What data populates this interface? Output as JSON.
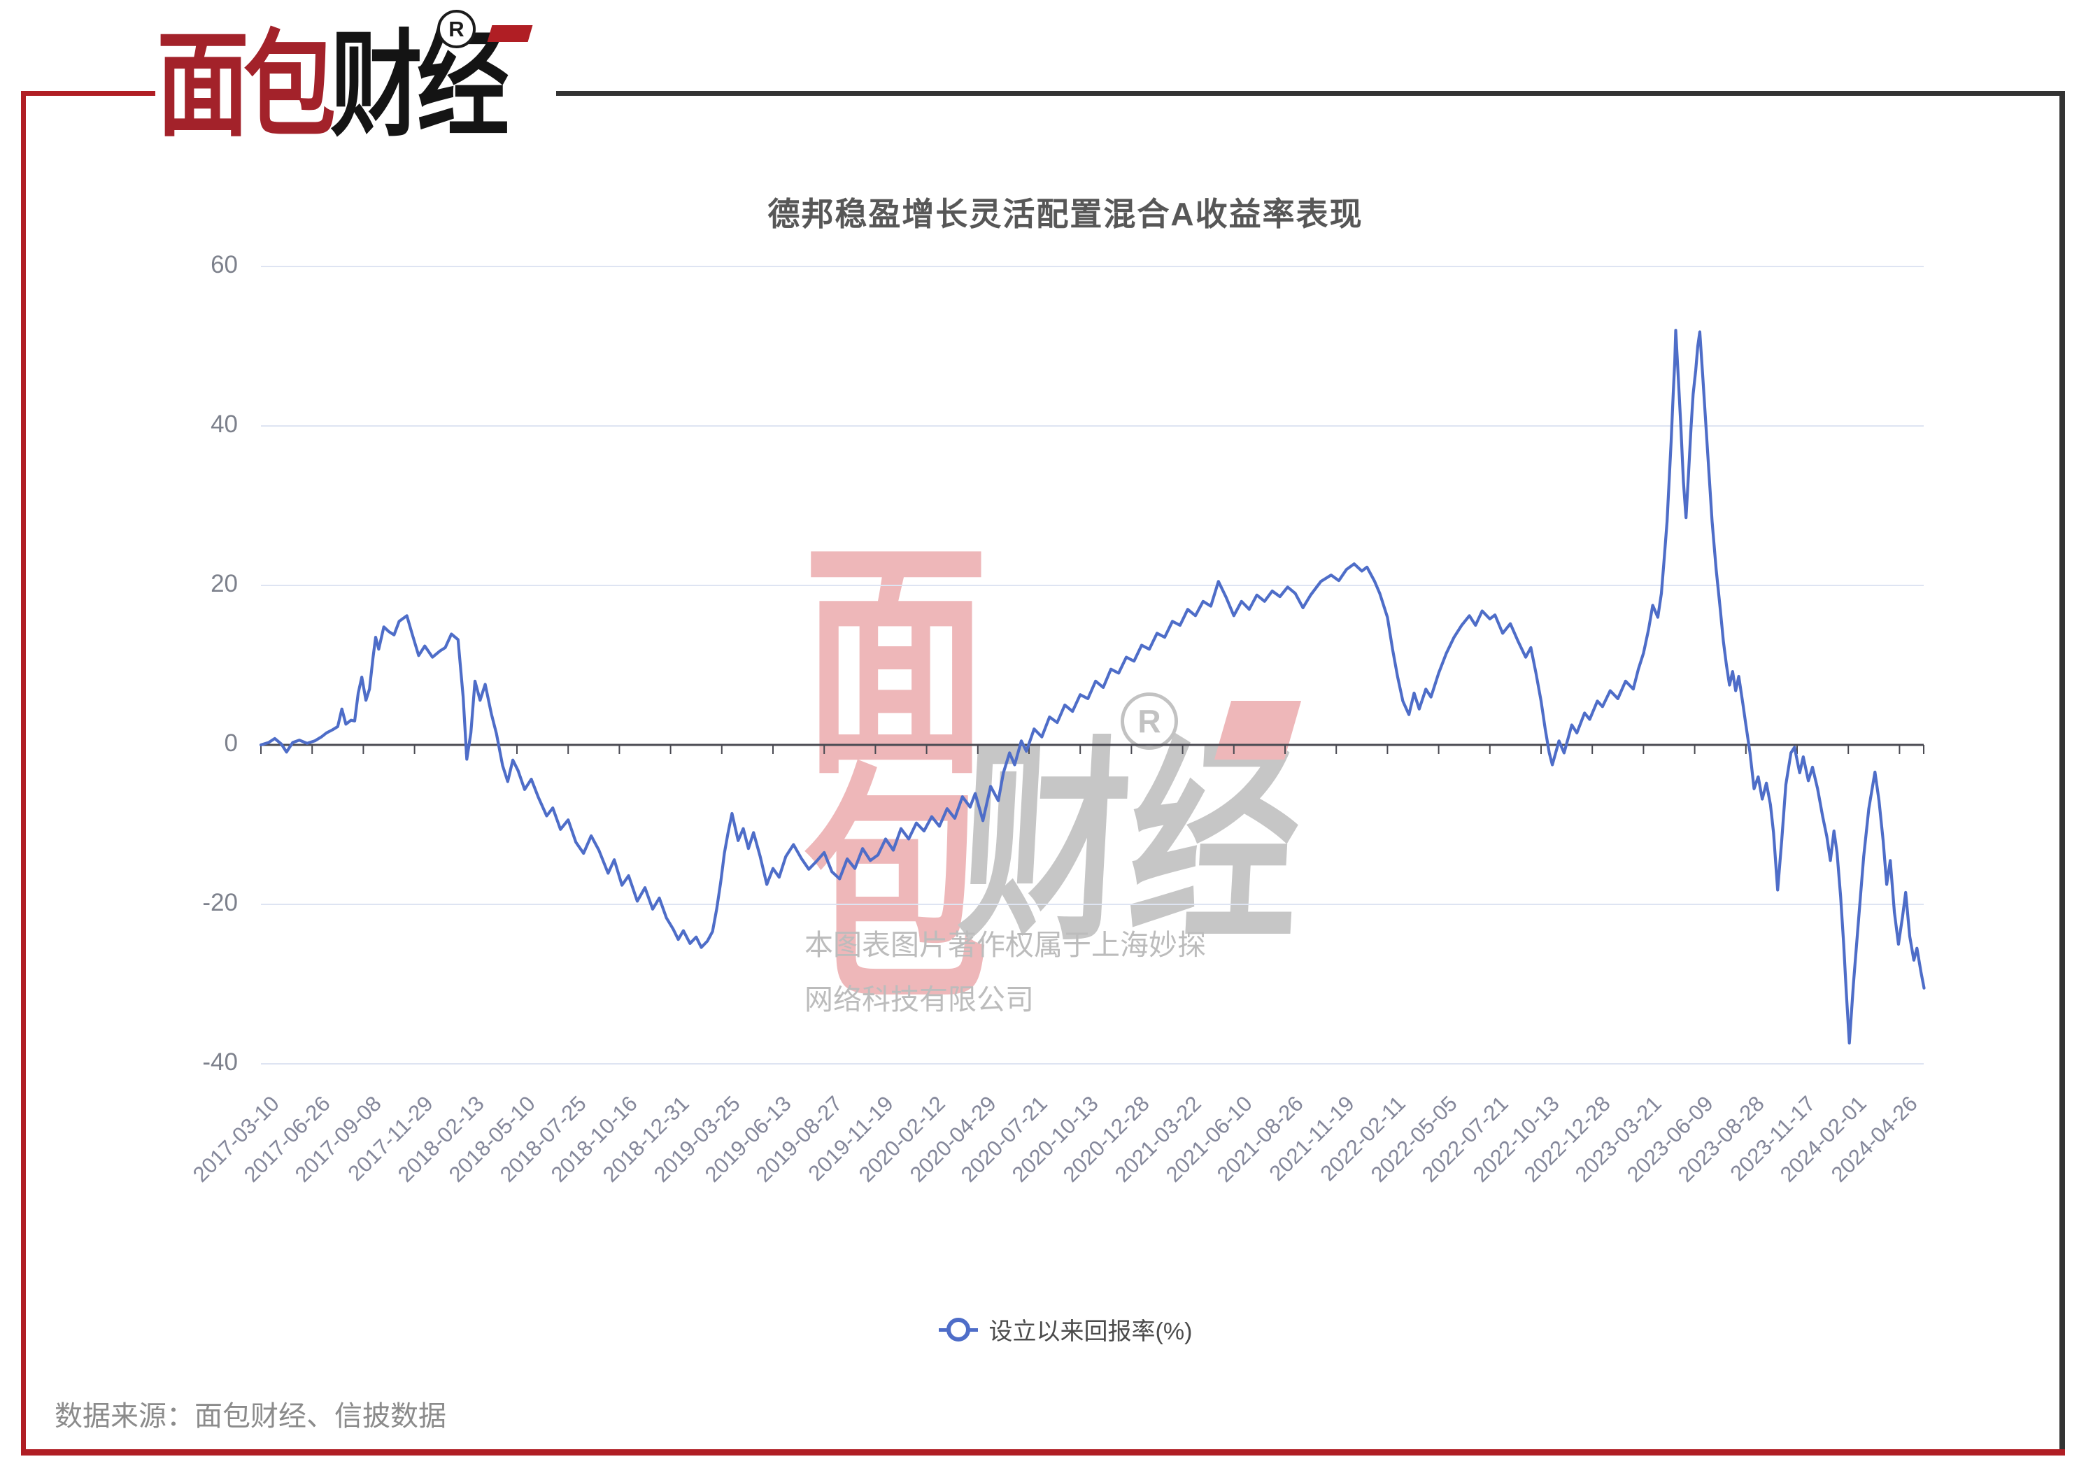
{
  "logo": {
    "brand_red": "面包",
    "brand_black": "财经",
    "registered": "R"
  },
  "header": {
    "title": "德邦稳盈增长灵活配置混合A收益率表现"
  },
  "legend": {
    "label": "设立以来回报率(%)"
  },
  "footer": {
    "source": "数据来源：面包财经、信披数据"
  },
  "watermark": {
    "char_top": "面",
    "char_bottom": "包",
    "right_text": "财经",
    "registered": "R",
    "copyright_line1": "本图表图片著作权属于上海妙探",
    "copyright_line2": "网络科技有限公司"
  },
  "colors": {
    "line": "#4e6dc8",
    "grid": "#dee4f2",
    "axis": "#4a4a52",
    "frame_red": "#b01e24",
    "frame_dark": "#333333",
    "logo_red": "#a3222a",
    "logo_black": "#141414",
    "watermark_pink": "#eeb7b9",
    "watermark_gray": "#c6c6c6",
    "copyright_gray": "#bcbcbc"
  },
  "chart_data": {
    "type": "line",
    "title": "德邦稳盈增长灵活配置混合A收益率表现",
    "xlabel": "",
    "ylabel": "",
    "ylim": [
      -40,
      60
    ],
    "grid": true,
    "legend_position": "bottom",
    "x_label_rotation": -45,
    "y_ticks": [
      60,
      40,
      20,
      0,
      -20,
      -40
    ],
    "x_labels": [
      "2017-03-10",
      "2017-06-26",
      "2017-09-08",
      "2017-11-29",
      "2018-02-13",
      "2018-05-10",
      "2018-07-25",
      "2018-10-16",
      "2018-12-31",
      "2019-03-25",
      "2019-06-13",
      "2019-08-27",
      "2019-11-19",
      "2020-02-12",
      "2020-04-29",
      "2020-07-21",
      "2020-10-13",
      "2020-12-28",
      "2021-03-22",
      "2021-06-10",
      "2021-08-26",
      "2021-11-19",
      "2022-02-11",
      "2022-05-05",
      "2022-07-21",
      "2022-10-13",
      "2022-12-28",
      "2023-03-21",
      "2023-06-09",
      "2023-08-28",
      "2023-11-17",
      "2024-02-01",
      "2024-04-26"
    ],
    "series": [
      {
        "name": "设立以来回报率(%)",
        "color": "#4e6dc8",
        "points": [
          [
            0,
            0
          ],
          [
            0.15,
            0.3
          ],
          [
            0.27,
            0.8
          ],
          [
            0.4,
            0.1
          ],
          [
            0.5,
            -0.9
          ],
          [
            0.62,
            0.3
          ],
          [
            0.75,
            0.6
          ],
          [
            0.9,
            0.2
          ],
          [
            1.05,
            0.5
          ],
          [
            1.18,
            1.0
          ],
          [
            1.28,
            1.5
          ],
          [
            1.4,
            1.9
          ],
          [
            1.5,
            2.3
          ],
          [
            1.58,
            4.5
          ],
          [
            1.66,
            2.6
          ],
          [
            1.76,
            3.1
          ],
          [
            1.83,
            3.0
          ],
          [
            1.9,
            6.5
          ],
          [
            1.97,
            8.5
          ],
          [
            2.05,
            5.6
          ],
          [
            2.12,
            7.0
          ],
          [
            2.19,
            11.0
          ],
          [
            2.24,
            13.5
          ],
          [
            2.3,
            12.0
          ],
          [
            2.4,
            14.8
          ],
          [
            2.5,
            14.2
          ],
          [
            2.6,
            13.8
          ],
          [
            2.7,
            15.5
          ],
          [
            2.85,
            16.2
          ],
          [
            2.95,
            14.0
          ],
          [
            3.08,
            11.2
          ],
          [
            3.2,
            12.4
          ],
          [
            3.35,
            11.0
          ],
          [
            3.5,
            11.8
          ],
          [
            3.6,
            12.2
          ],
          [
            3.72,
            13.9
          ],
          [
            3.85,
            13.2
          ],
          [
            3.95,
            6.0
          ],
          [
            4.02,
            -1.8
          ],
          [
            4.1,
            1.5
          ],
          [
            4.18,
            8.0
          ],
          [
            4.28,
            5.6
          ],
          [
            4.38,
            7.6
          ],
          [
            4.5,
            3.9
          ],
          [
            4.6,
            1.4
          ],
          [
            4.72,
            -2.6
          ],
          [
            4.82,
            -4.6
          ],
          [
            4.92,
            -1.9
          ],
          [
            5.02,
            -3.2
          ],
          [
            5.15,
            -5.6
          ],
          [
            5.28,
            -4.3
          ],
          [
            5.42,
            -6.6
          ],
          [
            5.58,
            -8.9
          ],
          [
            5.7,
            -7.9
          ],
          [
            5.85,
            -10.6
          ],
          [
            6.0,
            -9.4
          ],
          [
            6.15,
            -12.2
          ],
          [
            6.3,
            -13.6
          ],
          [
            6.45,
            -11.4
          ],
          [
            6.6,
            -13.2
          ],
          [
            6.78,
            -16.1
          ],
          [
            6.9,
            -14.4
          ],
          [
            7.05,
            -17.6
          ],
          [
            7.18,
            -16.4
          ],
          [
            7.35,
            -19.6
          ],
          [
            7.5,
            -17.9
          ],
          [
            7.65,
            -20.6
          ],
          [
            7.78,
            -19.2
          ],
          [
            7.92,
            -21.7
          ],
          [
            8.05,
            -23.1
          ],
          [
            8.15,
            -24.4
          ],
          [
            8.25,
            -23.3
          ],
          [
            8.38,
            -24.9
          ],
          [
            8.5,
            -24.1
          ],
          [
            8.6,
            -25.4
          ],
          [
            8.72,
            -24.6
          ],
          [
            8.82,
            -23.4
          ],
          [
            8.9,
            -20.6
          ],
          [
            8.98,
            -17.2
          ],
          [
            9.05,
            -13.6
          ],
          [
            9.12,
            -11.1
          ],
          [
            9.2,
            -8.6
          ],
          [
            9.32,
            -12.0
          ],
          [
            9.42,
            -10.5
          ],
          [
            9.52,
            -13.0
          ],
          [
            9.62,
            -11.0
          ],
          [
            9.75,
            -14.0
          ],
          [
            9.88,
            -17.5
          ],
          [
            10.0,
            -15.5
          ],
          [
            10.12,
            -16.6
          ],
          [
            10.25,
            -14.0
          ],
          [
            10.4,
            -12.5
          ],
          [
            10.55,
            -14.2
          ],
          [
            10.7,
            -15.6
          ],
          [
            10.85,
            -14.6
          ],
          [
            11.0,
            -13.5
          ],
          [
            11.15,
            -15.9
          ],
          [
            11.3,
            -16.8
          ],
          [
            11.45,
            -14.3
          ],
          [
            11.6,
            -15.5
          ],
          [
            11.75,
            -13.0
          ],
          [
            11.9,
            -14.5
          ],
          [
            12.05,
            -13.8
          ],
          [
            12.2,
            -11.8
          ],
          [
            12.35,
            -13.2
          ],
          [
            12.5,
            -10.5
          ],
          [
            12.65,
            -11.8
          ],
          [
            12.8,
            -9.8
          ],
          [
            12.95,
            -10.8
          ],
          [
            13.1,
            -9.0
          ],
          [
            13.25,
            -10.2
          ],
          [
            13.4,
            -8.0
          ],
          [
            13.55,
            -9.2
          ],
          [
            13.7,
            -6.5
          ],
          [
            13.85,
            -7.8
          ],
          [
            13.95,
            -6.1
          ],
          [
            14.1,
            -9.5
          ],
          [
            14.25,
            -5.2
          ],
          [
            14.4,
            -7.0
          ],
          [
            14.5,
            -3.5
          ],
          [
            14.62,
            -1.0
          ],
          [
            14.72,
            -2.5
          ],
          [
            14.85,
            0.5
          ],
          [
            14.95,
            -0.8
          ],
          [
            15.1,
            2.0
          ],
          [
            15.25,
            1.0
          ],
          [
            15.4,
            3.5
          ],
          [
            15.55,
            2.8
          ],
          [
            15.7,
            5.0
          ],
          [
            15.85,
            4.2
          ],
          [
            16.0,
            6.3
          ],
          [
            16.15,
            5.8
          ],
          [
            16.3,
            8.0
          ],
          [
            16.45,
            7.2
          ],
          [
            16.6,
            9.5
          ],
          [
            16.75,
            9.0
          ],
          [
            16.9,
            11.0
          ],
          [
            17.05,
            10.5
          ],
          [
            17.2,
            12.5
          ],
          [
            17.35,
            12.0
          ],
          [
            17.5,
            14.0
          ],
          [
            17.65,
            13.5
          ],
          [
            17.8,
            15.5
          ],
          [
            17.95,
            15.0
          ],
          [
            18.1,
            17.0
          ],
          [
            18.25,
            16.2
          ],
          [
            18.4,
            18.0
          ],
          [
            18.55,
            17.4
          ],
          [
            18.7,
            20.5
          ],
          [
            18.85,
            18.5
          ],
          [
            19.0,
            16.2
          ],
          [
            19.15,
            18.0
          ],
          [
            19.3,
            17.0
          ],
          [
            19.45,
            18.8
          ],
          [
            19.6,
            18.0
          ],
          [
            19.75,
            19.3
          ],
          [
            19.9,
            18.6
          ],
          [
            20.05,
            19.8
          ],
          [
            20.2,
            19.0
          ],
          [
            20.35,
            17.2
          ],
          [
            20.5,
            18.8
          ],
          [
            20.7,
            20.5
          ],
          [
            20.9,
            21.3
          ],
          [
            21.05,
            20.6
          ],
          [
            21.2,
            22.0
          ],
          [
            21.35,
            22.7
          ],
          [
            21.5,
            21.8
          ],
          [
            21.6,
            22.3
          ],
          [
            21.75,
            20.5
          ],
          [
            21.85,
            19.0
          ],
          [
            22.0,
            16.0
          ],
          [
            22.1,
            12.0
          ],
          [
            22.2,
            8.5
          ],
          [
            22.3,
            5.5
          ],
          [
            22.42,
            3.8
          ],
          [
            22.52,
            6.5
          ],
          [
            22.62,
            4.5
          ],
          [
            22.75,
            7.0
          ],
          [
            22.85,
            6.0
          ],
          [
            23.0,
            9.0
          ],
          [
            23.15,
            11.5
          ],
          [
            23.3,
            13.5
          ],
          [
            23.45,
            15.0
          ],
          [
            23.6,
            16.2
          ],
          [
            23.72,
            15.0
          ],
          [
            23.85,
            16.8
          ],
          [
            24.0,
            15.8
          ],
          [
            24.1,
            16.3
          ],
          [
            24.25,
            14.0
          ],
          [
            24.4,
            15.2
          ],
          [
            24.55,
            13.0
          ],
          [
            24.7,
            11.0
          ],
          [
            24.8,
            12.2
          ],
          [
            24.9,
            9.0
          ],
          [
            25.0,
            5.5
          ],
          [
            25.08,
            2.0
          ],
          [
            25.16,
            -1.0
          ],
          [
            25.22,
            -2.5
          ],
          [
            25.35,
            0.5
          ],
          [
            25.45,
            -1.0
          ],
          [
            25.6,
            2.5
          ],
          [
            25.7,
            1.5
          ],
          [
            25.85,
            4.0
          ],
          [
            25.95,
            3.2
          ],
          [
            26.1,
            5.5
          ],
          [
            26.2,
            4.8
          ],
          [
            26.35,
            6.8
          ],
          [
            26.5,
            5.8
          ],
          [
            26.65,
            8.0
          ],
          [
            26.8,
            7.0
          ],
          [
            26.9,
            9.5
          ],
          [
            27.0,
            11.5
          ],
          [
            27.1,
            14.5
          ],
          [
            27.18,
            17.5
          ],
          [
            27.28,
            16.0
          ],
          [
            27.35,
            19.0
          ],
          [
            27.4,
            23.0
          ],
          [
            27.46,
            28.0
          ],
          [
            27.5,
            33.0
          ],
          [
            27.54,
            38.0
          ],
          [
            27.58,
            44.0
          ],
          [
            27.61,
            48.0
          ],
          [
            27.63,
            52.0
          ],
          [
            27.68,
            46.0
          ],
          [
            27.73,
            40.0
          ],
          [
            27.78,
            33.0
          ],
          [
            27.83,
            28.5
          ],
          [
            27.88,
            34.0
          ],
          [
            27.93,
            40.0
          ],
          [
            27.97,
            44.0
          ],
          [
            28.02,
            47.0
          ],
          [
            28.06,
            50.0
          ],
          [
            28.1,
            51.8
          ],
          [
            28.16,
            46.0
          ],
          [
            28.22,
            40.0
          ],
          [
            28.28,
            34.0
          ],
          [
            28.34,
            28.0
          ],
          [
            28.42,
            22.0
          ],
          [
            28.5,
            17.0
          ],
          [
            28.56,
            13.0
          ],
          [
            28.62,
            10.0
          ],
          [
            28.68,
            7.5
          ],
          [
            28.74,
            9.2
          ],
          [
            28.8,
            6.8
          ],
          [
            28.86,
            8.6
          ],
          [
            28.94,
            5.2
          ],
          [
            29.0,
            2.5
          ],
          [
            29.08,
            -1.0
          ],
          [
            29.16,
            -5.5
          ],
          [
            29.24,
            -4.0
          ],
          [
            29.32,
            -6.8
          ],
          [
            29.4,
            -4.8
          ],
          [
            29.48,
            -7.5
          ],
          [
            29.54,
            -11.0
          ],
          [
            29.62,
            -18.2
          ],
          [
            29.7,
            -12.0
          ],
          [
            29.78,
            -5.0
          ],
          [
            29.88,
            -1.0
          ],
          [
            29.95,
            -0.3
          ],
          [
            30.05,
            -3.5
          ],
          [
            30.12,
            -1.5
          ],
          [
            30.22,
            -4.5
          ],
          [
            30.3,
            -2.8
          ],
          [
            30.4,
            -5.5
          ],
          [
            30.5,
            -9.0
          ],
          [
            30.58,
            -11.5
          ],
          [
            30.65,
            -14.5
          ],
          [
            30.72,
            -10.8
          ],
          [
            30.78,
            -13.5
          ],
          [
            30.85,
            -19.0
          ],
          [
            30.91,
            -25.0
          ],
          [
            30.96,
            -31.0
          ],
          [
            31.02,
            -37.4
          ],
          [
            31.1,
            -30.0
          ],
          [
            31.2,
            -22.0
          ],
          [
            31.3,
            -14.0
          ],
          [
            31.4,
            -8.0
          ],
          [
            31.52,
            -3.4
          ],
          [
            31.6,
            -7.0
          ],
          [
            31.68,
            -12.0
          ],
          [
            31.75,
            -17.5
          ],
          [
            31.82,
            -14.5
          ],
          [
            31.9,
            -21.0
          ],
          [
            31.98,
            -25.0
          ],
          [
            32.06,
            -21.5
          ],
          [
            32.12,
            -18.5
          ],
          [
            32.2,
            -24.0
          ],
          [
            32.28,
            -27.0
          ],
          [
            32.34,
            -25.5
          ],
          [
            32.42,
            -28.5
          ],
          [
            32.48,
            -30.5
          ]
        ]
      }
    ]
  }
}
